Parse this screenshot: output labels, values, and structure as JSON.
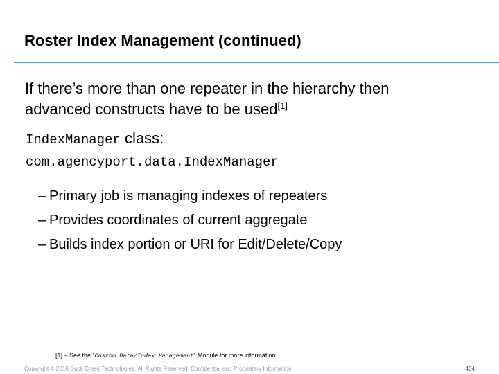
{
  "slide": {
    "title": "Roster Index Management (continued)",
    "intro_line1": "If there’s more than one repeater in the hierarchy then",
    "intro_line2": "advanced constructs have to be used",
    "intro_footref": "[1]",
    "class_name": "IndexManager",
    "class_suffix": " class:",
    "class_path": "com.agencyport.data.IndexManager",
    "bullets": [
      "Primary job is managing indexes of repeaters",
      "Provides coordinates of current aggregate",
      "Builds index portion or URI for Edit/Delete/Copy"
    ],
    "bullet_marker": "–",
    "footnote_prefix": "[1] – See the “",
    "footnote_italic": "Custom Data/Index Management",
    "footnote_suffix": "” Module for more information"
  },
  "footer": {
    "copyright": "Copyright © 2016 Duck Creek Technologies. All Rights Reserved. Confidential and Proprietary Information.",
    "page_number": "404"
  },
  "colors": {
    "rule": "#5aa7c9",
    "footer_text": "#9a9a9a"
  }
}
